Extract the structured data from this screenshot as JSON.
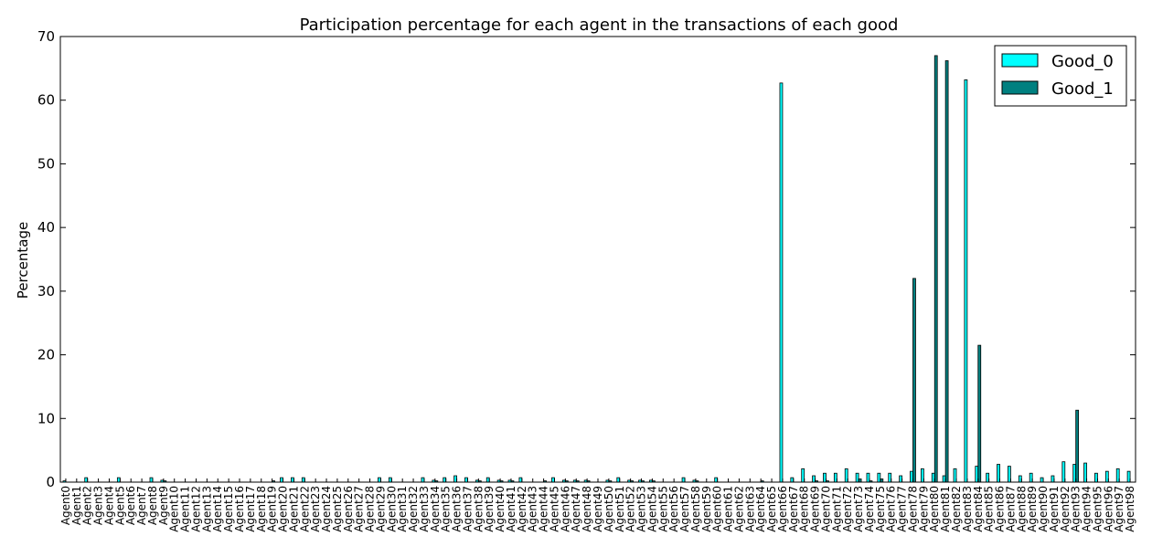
{
  "chart_data": {
    "type": "bar",
    "title": "Participation percentage for each agent in the transactions of each good",
    "xlabel": "",
    "ylabel": "Percentage",
    "ylim": [
      0,
      70
    ],
    "yticks": [
      0,
      10,
      20,
      30,
      40,
      50,
      60,
      70
    ],
    "grid": false,
    "legend_position": "top-right",
    "colors": {
      "Good_0": "#00ffff",
      "Good_1": "#008080"
    },
    "categories": [
      "Agent0",
      "Agent1",
      "Agent2",
      "Agent3",
      "Agent4",
      "Agent5",
      "Agent6",
      "Agent7",
      "Agent8",
      "Agent9",
      "Agent10",
      "Agent11",
      "Agent12",
      "Agent13",
      "Agent14",
      "Agent15",
      "Agent16",
      "Agent17",
      "Agent18",
      "Agent19",
      "Agent20",
      "Agent21",
      "Agent22",
      "Agent23",
      "Agent24",
      "Agent25",
      "Agent26",
      "Agent27",
      "Agent28",
      "Agent29",
      "Agent30",
      "Agent31",
      "Agent32",
      "Agent33",
      "Agent34",
      "Agent35",
      "Agent36",
      "Agent37",
      "Agent38",
      "Agent39",
      "Agent40",
      "Agent41",
      "Agent42",
      "Agent43",
      "Agent44",
      "Agent45",
      "Agent46",
      "Agent47",
      "Agent48",
      "Agent49",
      "Agent50",
      "Agent51",
      "Agent52",
      "Agent53",
      "Agent54",
      "Agent55",
      "Agent56",
      "Agent57",
      "Agent58",
      "Agent59",
      "Agent60",
      "Agent61",
      "Agent62",
      "Agent63",
      "Agent64",
      "Agent65",
      "Agent66",
      "Agent67",
      "Agent68",
      "Agent69",
      "Agent70",
      "Agent71",
      "Agent72",
      "Agent73",
      "Agent74",
      "Agent75",
      "Agent76",
      "Agent77",
      "Agent78",
      "Agent79",
      "Agent80",
      "Agent81",
      "Agent82",
      "Agent83",
      "Agent84",
      "Agent85",
      "Agent86",
      "Agent87",
      "Agent88",
      "Agent89",
      "Agent90",
      "Agent91",
      "Agent92",
      "Agent93",
      "Agent94",
      "Agent95",
      "Agent96",
      "Agent97",
      "Agent98"
    ],
    "series": [
      {
        "name": "Good_0",
        "values": [
          0.2,
          0,
          0.7,
          0,
          0,
          0.7,
          0,
          0,
          0.7,
          0.3,
          0,
          0,
          0,
          0,
          0,
          0,
          0,
          0,
          0,
          0,
          0.7,
          0.7,
          0.7,
          0,
          0,
          0,
          0,
          0,
          0,
          0.7,
          0.7,
          0,
          0,
          0.7,
          0.3,
          0.7,
          1.0,
          0.7,
          0.3,
          0.7,
          0.3,
          0.3,
          0.7,
          0,
          0,
          0.7,
          0.3,
          0.3,
          0.3,
          0,
          0.3,
          0.7,
          0.3,
          0.3,
          0.3,
          0,
          0,
          0.7,
          0.3,
          0,
          0.7,
          0,
          0,
          0,
          0,
          0,
          62.7,
          0.7,
          2.1,
          1.0,
          1.4,
          1.4,
          2.1,
          1.4,
          1.4,
          1.4,
          1.4,
          1.0,
          1.7,
          2.1,
          1.4,
          1.0,
          2.1,
          63.2,
          2.5,
          1.4,
          2.8,
          2.5,
          1.0,
          1.4,
          0.7,
          1.0,
          3.2,
          2.8,
          3.0,
          1.4,
          1.7,
          2.1,
          1.7
        ]
      },
      {
        "name": "Good_1",
        "values": [
          0,
          0,
          0,
          0,
          0,
          0,
          0,
          0,
          0,
          0.2,
          0,
          0,
          0,
          0,
          0,
          0,
          0,
          0,
          0,
          0.2,
          0,
          0,
          0,
          0,
          0,
          0,
          0,
          0,
          0,
          0,
          0,
          0,
          0,
          0,
          0.2,
          0,
          0,
          0,
          0.2,
          0,
          0.2,
          0.2,
          0,
          0,
          0.2,
          0,
          0.2,
          0.2,
          0.2,
          0,
          0.2,
          0,
          0.2,
          0.2,
          0.2,
          0,
          0,
          0,
          0.2,
          0,
          0,
          0,
          0,
          0,
          0.2,
          0,
          0,
          0,
          0,
          0.2,
          0.2,
          0,
          0,
          0.5,
          0.2,
          0.5,
          0,
          0,
          32.0,
          0,
          67.0,
          66.2,
          0,
          0,
          21.5,
          0,
          0,
          0,
          0,
          0,
          0,
          0,
          0,
          11.3,
          0,
          0,
          0,
          0,
          0
        ]
      }
    ]
  }
}
